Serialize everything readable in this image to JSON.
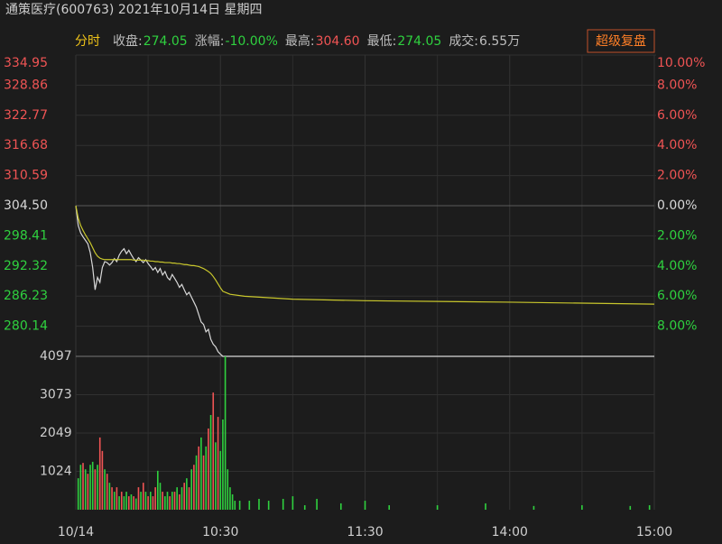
{
  "header": {
    "title": "通策医疗(600763) 2021年10月14日 星期四",
    "mode": "分时",
    "button": "超级复盘",
    "info": [
      {
        "label": "收盘:",
        "value": "274.05",
        "color": "#2fd13f"
      },
      {
        "label": "涨幅:",
        "value": "-10.00%",
        "color": "#2fd13f"
      },
      {
        "label": "最高:",
        "value": "304.60",
        "color": "#f05454"
      },
      {
        "label": "最低:",
        "value": "274.05",
        "color": "#2fd13f"
      },
      {
        "label": "成交:",
        "value": "6.55万",
        "color": "#bdbdbd"
      }
    ]
  },
  "chart_data": [
    {
      "type": "line",
      "x": [
        0,
        1,
        2,
        3,
        4,
        5,
        6,
        7,
        8,
        9,
        10,
        11,
        12,
        13,
        14,
        15,
        16,
        17,
        18,
        19,
        20,
        21,
        22,
        23,
        24,
        25,
        26,
        27,
        28,
        29,
        30,
        31,
        32,
        33,
        34,
        35,
        36,
        37,
        38,
        39,
        40,
        41,
        42,
        43,
        44,
        45,
        46,
        47,
        48,
        49,
        50,
        51,
        52,
        53,
        54,
        55,
        56,
        57,
        58,
        59,
        60,
        61,
        64,
        70,
        90,
        120,
        180,
        240
      ],
      "series": [
        {
          "color": "#d8d8d8",
          "values": [
            304.5,
            300.5,
            299.0,
            298.2,
            297.5,
            296.8,
            295.0,
            292.0,
            287.5,
            290.0,
            289.0,
            292.0,
            293.2,
            293.0,
            292.5,
            293.0,
            293.8,
            293.2,
            294.5,
            295.3,
            295.8,
            294.8,
            295.5,
            294.6,
            293.8,
            293.2,
            294.0,
            293.5,
            293.0,
            293.6,
            292.8,
            292.2,
            291.5,
            292.0,
            291.0,
            291.8,
            290.5,
            291.2,
            290.0,
            289.5,
            290.6,
            289.8,
            289.0,
            288.0,
            288.6,
            287.5,
            286.5,
            287.0,
            286.0,
            285.0,
            284.0,
            282.5,
            281.0,
            280.5,
            279.0,
            279.5,
            277.5,
            276.5,
            276.0,
            275.0,
            274.5,
            274.05,
            274.05,
            274.05,
            274.05,
            274.05,
            274.05,
            274.05
          ]
        },
        {
          "color": "#c9c72c",
          "values": [
            304.5,
            302.0,
            300.5,
            299.5,
            298.6,
            297.8,
            297.0,
            296.0,
            295.0,
            294.3,
            293.9,
            293.7,
            293.6,
            293.6,
            293.6,
            293.6,
            293.6,
            293.6,
            293.6,
            293.6,
            293.6,
            293.6,
            293.6,
            293.6,
            293.5,
            293.5,
            293.5,
            293.5,
            293.5,
            293.4,
            293.4,
            293.3,
            293.3,
            293.2,
            293.2,
            293.1,
            293.1,
            293.0,
            293.0,
            293.0,
            292.9,
            292.9,
            292.8,
            292.8,
            292.7,
            292.6,
            292.6,
            292.5,
            292.4,
            292.4,
            292.3,
            292.2,
            292.0,
            291.8,
            291.5,
            291.2,
            290.8,
            290.2,
            289.5,
            288.7,
            287.9,
            287.2,
            286.6,
            286.2,
            285.6,
            285.3,
            285.0,
            284.6
          ]
        }
      ],
      "xlim": [
        0,
        240
      ],
      "ylim": [
        274.05,
        334.95
      ],
      "yticks": [
        334.95,
        328.86,
        322.77,
        316.68,
        310.59,
        {
          "value": 304.5,
          "label": "304.50"
        },
        298.41,
        292.32,
        286.23,
        280.14
      ],
      "y2lim": [
        -10,
        10
      ],
      "y2ticks": [
        {
          "value": 10,
          "label": "10.00%"
        },
        {
          "value": 8,
          "label": "8.00%"
        },
        {
          "value": 6,
          "label": "6.00%"
        },
        {
          "value": 4,
          "label": "4.00%"
        },
        {
          "value": 2,
          "label": "2.00%"
        },
        {
          "value": 0,
          "label": "0.00%"
        },
        {
          "value": -2,
          "label": "2.00%"
        },
        {
          "value": -4,
          "label": "4.00%"
        },
        {
          "value": -6,
          "label": "6.00%"
        },
        {
          "value": -8,
          "label": "8.00%"
        }
      ],
      "grid": true
    },
    {
      "type": "bar",
      "x": [
        1,
        2,
        3,
        4,
        5,
        6,
        7,
        8,
        9,
        10,
        11,
        12,
        13,
        14,
        15,
        16,
        17,
        18,
        19,
        20,
        21,
        22,
        23,
        24,
        25,
        26,
        27,
        28,
        29,
        30,
        31,
        32,
        33,
        34,
        35,
        36,
        37,
        38,
        39,
        40,
        41,
        42,
        43,
        44,
        45,
        46,
        47,
        48,
        49,
        50,
        51,
        52,
        53,
        54,
        55,
        56,
        57,
        58,
        59,
        60,
        61,
        62,
        63,
        64,
        65,
        66,
        68,
        72,
        76,
        80,
        86,
        90,
        95,
        100,
        110,
        120,
        130,
        150,
        170,
        190,
        210,
        230,
        238
      ],
      "values": [
        840,
        1200,
        1250,
        1080,
        960,
        1200,
        1280,
        1080,
        1200,
        1930,
        1570,
        1080,
        960,
        720,
        600,
        480,
        600,
        360,
        480,
        360,
        480,
        360,
        410,
        360,
        300,
        600,
        480,
        720,
        480,
        360,
        480,
        360,
        600,
        1040,
        720,
        480,
        360,
        480,
        360,
        480,
        480,
        600,
        410,
        600,
        720,
        840,
        600,
        1080,
        1200,
        1450,
        1690,
        1930,
        1450,
        1690,
        2170,
        2530,
        3130,
        1800,
        2480,
        1570,
        2410,
        4097,
        1080,
        600,
        410,
        240,
        240,
        240,
        290,
        240,
        290,
        360,
        120,
        290,
        170,
        240,
        120,
        120,
        170,
        100,
        120,
        100,
        120
      ],
      "colors": [
        "g",
        "g",
        "r",
        "g",
        "r",
        "g",
        "g",
        "r",
        "g",
        "r",
        "r",
        "g",
        "r",
        "g",
        "r",
        "g",
        "r",
        "g",
        "r",
        "g",
        "g",
        "r",
        "g",
        "r",
        "g",
        "r",
        "g",
        "r",
        "g",
        "r",
        "g",
        "r",
        "r",
        "g",
        "g",
        "r",
        "g",
        "g",
        "r",
        "g",
        "r",
        "g",
        "r",
        "g",
        "r",
        "g",
        "r",
        "g",
        "r",
        "g",
        "r",
        "g",
        "r",
        "g",
        "r",
        "g",
        "r",
        "g",
        "r",
        "g",
        "g",
        "g",
        "g",
        "g",
        "g",
        "g",
        "g",
        "g",
        "g",
        "g",
        "g",
        "g",
        "g",
        "g",
        "g",
        "g",
        "g",
        "g",
        "g",
        "g",
        "g",
        "g",
        "g"
      ],
      "xlim": [
        0,
        240
      ],
      "ylim": [
        0,
        4097
      ],
      "yticks": [
        1024,
        2049,
        3073,
        4097
      ],
      "xticks": [
        {
          "value": 0,
          "label": "10/14"
        },
        {
          "value": 60,
          "label": "10:30"
        },
        {
          "value": 120,
          "label": "11:30"
        },
        {
          "value": 180,
          "label": "14:00"
        },
        {
          "value": 240,
          "label": "15:00"
        }
      ]
    }
  ]
}
